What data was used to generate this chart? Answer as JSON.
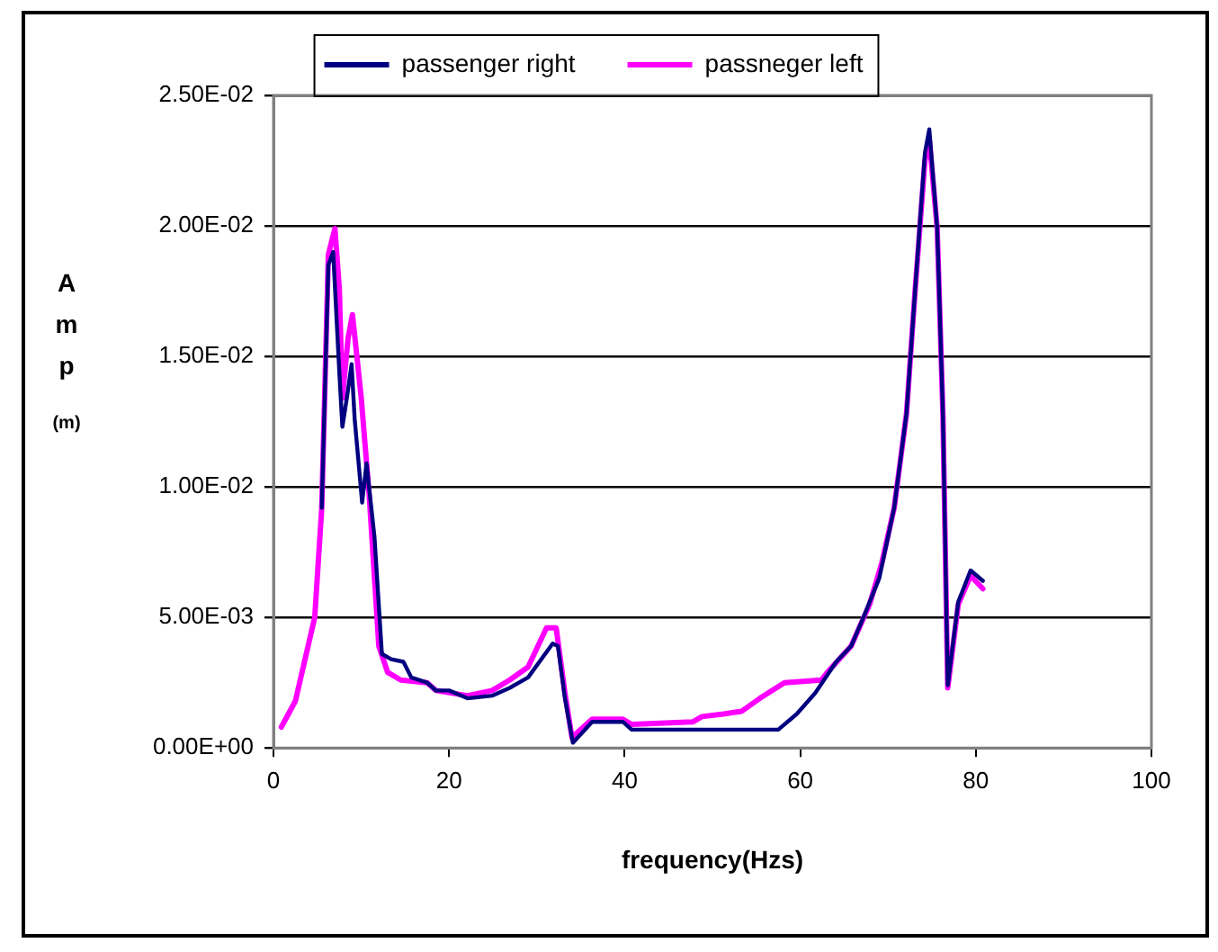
{
  "chart_data": {
    "type": "line",
    "xlabel": "frequency(Hzs)",
    "ylabel": "Amp (m)",
    "xlim": [
      0,
      100
    ],
    "xticks": [
      0,
      20,
      40,
      60,
      80,
      100
    ],
    "ylim": [
      0,
      0.025
    ],
    "yticks": [
      {
        "value": 0,
        "label": "0.00E+00"
      },
      {
        "value": 0.005,
        "label": "5.00E-03"
      },
      {
        "value": 0.01,
        "label": "1.00E-02"
      },
      {
        "value": 0.015,
        "label": "1.50E-02"
      },
      {
        "value": 0.02,
        "label": "2.00E-02"
      },
      {
        "value": 0.025,
        "label": "2.50E-02"
      }
    ],
    "grid": "y",
    "legend": "top",
    "marker": "none",
    "line_style": "solid",
    "series": [
      {
        "name": "passenger right",
        "color": "#000080",
        "x": [
          5.5,
          6.25,
          6.8,
          7.5,
          7.85,
          8.4,
          8.9,
          9.25,
          10.1,
          10.6,
          10.95,
          11.5,
          12.35,
          13.4,
          14.8,
          15.7,
          17.5,
          18.5,
          20,
          22.1,
          24.9,
          26.9,
          29,
          31.8,
          32.4,
          33.2,
          34.1,
          36.3,
          39.8,
          40.8,
          47.8,
          51.25,
          57.5,
          59.6,
          61.7,
          64.1,
          65.8,
          67.2,
          69,
          70.7,
          72.1,
          73.1,
          74.2,
          74.7,
          75.6,
          76.25,
          76.8,
          78,
          79.4,
          80.8
        ],
        "values": [
          0.0092,
          0.0185,
          0.019,
          0.0144,
          0.0123,
          0.0135,
          0.0147,
          0.0126,
          0.0094,
          0.0109,
          0.0098,
          0.0081,
          0.0036,
          0.0034,
          0.0033,
          0.0027,
          0.0025,
          0.0022,
          0.0022,
          0.0019,
          0.002,
          0.0023,
          0.0027,
          0.004,
          0.0039,
          0.0019,
          0.0002,
          0.001,
          0.001,
          0.0007,
          0.0007,
          0.0007,
          0.0007,
          0.0013,
          0.0021,
          0.0033,
          0.0039,
          0.005,
          0.0065,
          0.0092,
          0.0128,
          0.0176,
          0.0228,
          0.0237,
          0.0199,
          0.0128,
          0.0024,
          0.0056,
          0.0068,
          0.0064
        ]
      },
      {
        "name": "passneger left",
        "color": "#ff00ff",
        "x": [
          0.9,
          2.5,
          4.7,
          5.5,
          6.25,
          7,
          7.5,
          7.85,
          8.5,
          9,
          10,
          10.9,
          12,
          13,
          14.5,
          17.5,
          18.5,
          22.1,
          24.9,
          26.9,
          29,
          31.1,
          32.2,
          33.2,
          34,
          36.3,
          39.8,
          40.8,
          47.8,
          48.8,
          51.25,
          53.3,
          55.4,
          58.2,
          62.4,
          63.1,
          65.8,
          67.9,
          69.3,
          70.7,
          72.1,
          73.1,
          74.2,
          74.7,
          75.6,
          76.25,
          76.8,
          78,
          79.4,
          80.8
        ],
        "values": [
          0.0008,
          0.0018,
          0.005,
          0.0092,
          0.0189,
          0.0199,
          0.0176,
          0.0134,
          0.0157,
          0.0166,
          0.0134,
          0.0097,
          0.0039,
          0.0029,
          0.0026,
          0.0025,
          0.0022,
          0.002,
          0.0022,
          0.0026,
          0.0031,
          0.0046,
          0.0046,
          0.0021,
          0.0004,
          0.0011,
          0.0011,
          0.0009,
          0.001,
          0.0012,
          0.0013,
          0.0014,
          0.0019,
          0.0025,
          0.0026,
          0.0029,
          0.0039,
          0.0055,
          0.0071,
          0.0092,
          0.0128,
          0.0176,
          0.0225,
          0.0233,
          0.0199,
          0.0128,
          0.0023,
          0.0055,
          0.0066,
          0.0061
        ]
      }
    ]
  }
}
